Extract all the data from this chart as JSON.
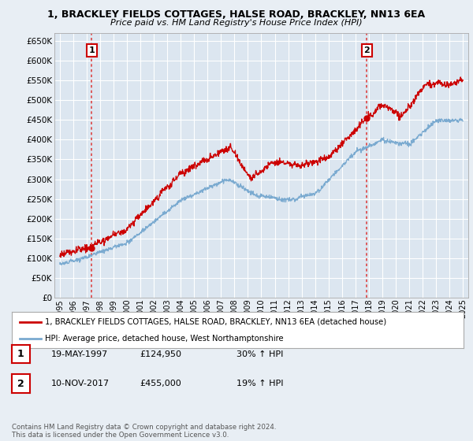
{
  "title1": "1, BRACKLEY FIELDS COTTAGES, HALSE ROAD, BRACKLEY, NN13 6EA",
  "title2": "Price paid vs. HM Land Registry's House Price Index (HPI)",
  "ylabel_ticks": [
    "£0",
    "£50K",
    "£100K",
    "£150K",
    "£200K",
    "£250K",
    "£300K",
    "£350K",
    "£400K",
    "£450K",
    "£500K",
    "£550K",
    "£600K",
    "£650K"
  ],
  "ytick_values": [
    0,
    50000,
    100000,
    150000,
    200000,
    250000,
    300000,
    350000,
    400000,
    450000,
    500000,
    550000,
    600000,
    650000
  ],
  "ylim": [
    0,
    670000
  ],
  "xlim_start": 1994.6,
  "xlim_end": 2025.4,
  "sale1_x": 1997.37,
  "sale1_y": 124950,
  "sale2_x": 2017.86,
  "sale2_y": 455000,
  "sale1_label": "1",
  "sale2_label": "2",
  "sale1_date": "19-MAY-1997",
  "sale1_price": "£124,950",
  "sale1_hpi": "30% ↑ HPI",
  "sale2_date": "10-NOV-2017",
  "sale2_price": "£455,000",
  "sale2_hpi": "19% ↑ HPI",
  "line1_color": "#cc0000",
  "line2_color": "#7aaad0",
  "dashed_color": "#dd4444",
  "bg_color": "#e8eef4",
  "plot_bg": "#dce6f0",
  "legend_line1": "1, BRACKLEY FIELDS COTTAGES, HALSE ROAD, BRACKLEY, NN13 6EA (detached house)",
  "legend_line2": "HPI: Average price, detached house, West Northamptonshire",
  "footer": "Contains HM Land Registry data © Crown copyright and database right 2024.\nThis data is licensed under the Open Government Licence v3.0."
}
